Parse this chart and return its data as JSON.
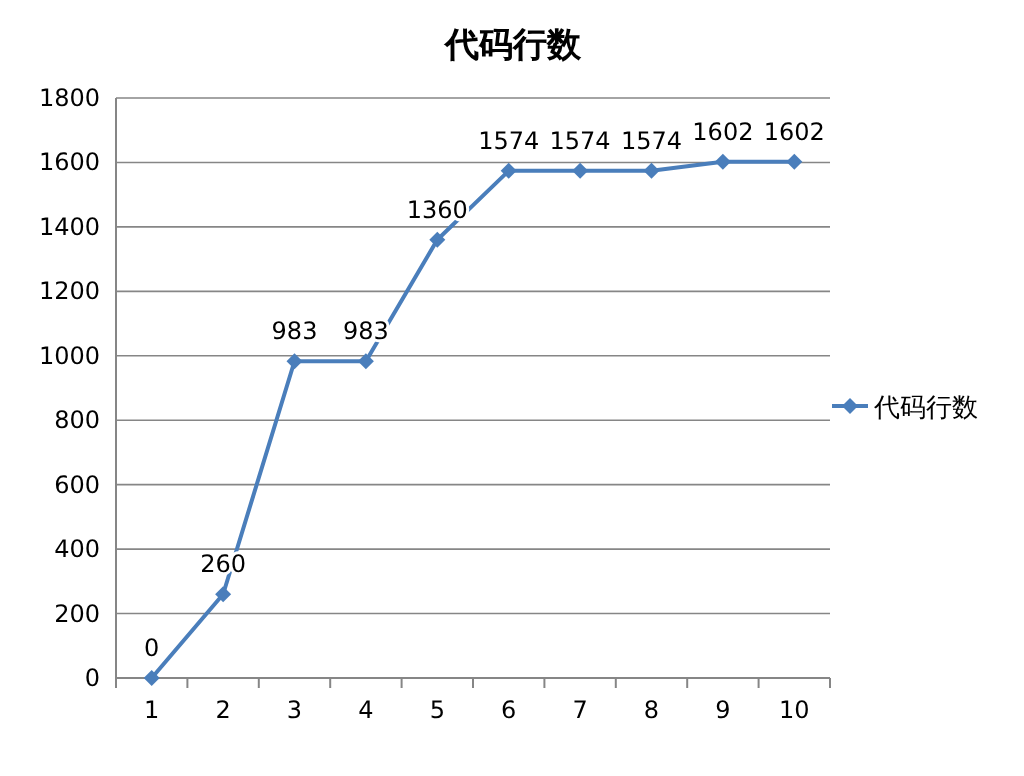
{
  "chart_data": {
    "type": "line",
    "title": "代码行数",
    "categories": [
      "1",
      "2",
      "3",
      "4",
      "5",
      "6",
      "7",
      "8",
      "9",
      "10"
    ],
    "series": [
      {
        "name": "代码行数",
        "color": "#4a7ebb",
        "values": [
          0,
          260,
          983,
          983,
          1360,
          1574,
          1574,
          1574,
          1602,
          1602
        ]
      }
    ],
    "ylim": [
      0,
      1800
    ],
    "yticks": [
      0,
      200,
      400,
      600,
      800,
      1000,
      1200,
      1400,
      1600,
      1800
    ],
    "grid": "y",
    "legend": "right",
    "marker": "diamond",
    "data_labels": true
  }
}
